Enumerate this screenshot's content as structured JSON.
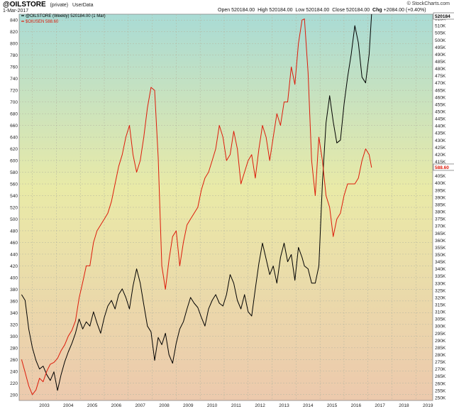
{
  "header": {
    "symbol": "@OILSTORE",
    "tag": "(private)",
    "source": "UserData",
    "date": "1-Mar-2017",
    "open_label": "Open",
    "open_value": "520184.00",
    "high_label": "High",
    "high_value": "520184.00",
    "low_label": "Low",
    "low_value": "520184.00",
    "close_label": "Close",
    "close_value": "520184.00",
    "chg_label": "Chg",
    "chg_value": "+2084.00 (+0.40%)",
    "brand": "© StockCharts.com"
  },
  "chart_data": {
    "type": "line",
    "x_ticks": [
      "2003",
      "2004",
      "2005",
      "2006",
      "2007",
      "2008",
      "2009",
      "2010",
      "2011",
      "2012",
      "2013",
      "2014",
      "2015",
      "2016",
      "2017",
      "2018",
      "2019"
    ],
    "left_axis": {
      "ticks": [
        200,
        220,
        240,
        260,
        280,
        300,
        320,
        340,
        360,
        380,
        400,
        420,
        440,
        460,
        480,
        500,
        520,
        540,
        560,
        580,
        600,
        620,
        640,
        660,
        680,
        700,
        720,
        740,
        760,
        780,
        800,
        820,
        840
      ],
      "ylim": [
        190,
        850
      ]
    },
    "right_axis": {
      "ticks": [
        "250K",
        "255K",
        "260K",
        "265K",
        "270K",
        "275K",
        "280K",
        "285K",
        "290K",
        "295K",
        "300K",
        "305K",
        "310K",
        "315K",
        "320K",
        "325K",
        "330K",
        "335K",
        "340K",
        "345K",
        "350K",
        "355K",
        "360K",
        "365K",
        "370K",
        "375K",
        "380K",
        "385K",
        "390K",
        "395K",
        "400K",
        "405K",
        "410K",
        "415K",
        "420K",
        "425K",
        "430K",
        "435K",
        "440K",
        "445K",
        "450K",
        "455K",
        "460K",
        "465K",
        "470K",
        "475K",
        "480K",
        "485K",
        "490K",
        "495K",
        "500K",
        "505K",
        "510K",
        "515K"
      ],
      "ylim": [
        248000,
        518000
      ]
    },
    "last_values": {
      "oilstore": "520184",
      "crude": "588.60"
    },
    "series": [
      {
        "name": "@OILSTORE (Weekly) 520184.00 (1 Mar)",
        "axis": "right",
        "color": "#000000",
        "x": [
          2002.55,
          2002.7,
          2002.85,
          2003.0,
          2003.15,
          2003.3,
          2003.45,
          2003.6,
          2003.75,
          2003.9,
          2004.05,
          2004.2,
          2004.35,
          2004.5,
          2004.65,
          2004.8,
          2004.95,
          2005.1,
          2005.25,
          2005.4,
          2005.55,
          2005.7,
          2005.85,
          2006.0,
          2006.15,
          2006.3,
          2006.45,
          2006.6,
          2006.75,
          2006.9,
          2007.05,
          2007.2,
          2007.35,
          2007.5,
          2007.65,
          2007.8,
          2007.95,
          2008.1,
          2008.25,
          2008.4,
          2008.55,
          2008.7,
          2008.85,
          2009.0,
          2009.15,
          2009.3,
          2009.45,
          2009.6,
          2009.75,
          2009.9,
          2010.05,
          2010.2,
          2010.35,
          2010.5,
          2010.65,
          2010.8,
          2010.95,
          2011.1,
          2011.25,
          2011.4,
          2011.55,
          2011.7,
          2011.85,
          2012.0,
          2012.15,
          2012.3,
          2012.45,
          2012.6,
          2012.75,
          2012.9,
          2013.05,
          2013.2,
          2013.35,
          2013.5,
          2013.65,
          2013.8,
          2013.95,
          2014.1,
          2014.25,
          2014.35,
          2014.5,
          2014.65,
          2014.8,
          2014.95,
          2015.1,
          2015.25,
          2015.4,
          2015.55,
          2015.7,
          2015.85,
          2016.0,
          2016.15,
          2016.3,
          2016.45,
          2016.6,
          2016.75,
          2016.9,
          2017.05,
          2017.15
        ],
        "y": [
          322000,
          318000,
          298000,
          285000,
          276000,
          270000,
          272000,
          266000,
          262000,
          268000,
          255000,
          266000,
          275000,
          282000,
          288000,
          295000,
          305000,
          298000,
          303000,
          300000,
          310000,
          302000,
          295000,
          306000,
          314000,
          318000,
          312000,
          322000,
          326000,
          320000,
          312000,
          328000,
          340000,
          330000,
          315000,
          300000,
          296000,
          276000,
          292000,
          287000,
          295000,
          280000,
          274000,
          288000,
          298000,
          303000,
          312000,
          320000,
          316000,
          313000,
          306000,
          300000,
          312000,
          318000,
          322000,
          316000,
          314000,
          322000,
          336000,
          330000,
          318000,
          312000,
          322000,
          310000,
          307000,
          326000,
          344000,
          358000,
          347000,
          336000,
          342000,
          330000,
          348000,
          358000,
          345000,
          350000,
          332000,
          355000,
          348000,
          342000,
          340000,
          330000,
          330000,
          342000,
          400000,
          442000,
          461000,
          443000,
          428000,
          430000,
          455000,
          474000,
          490000,
          510000,
          498000,
          474000,
          470000,
          490000,
          518000
        ]
      },
      {
        "name": "$OIUSEN 588.60",
        "axis": "left",
        "color": "#dd1a0a",
        "x": [
          2002.55,
          2002.7,
          2002.85,
          2003.0,
          2003.15,
          2003.3,
          2003.45,
          2003.6,
          2003.75,
          2003.9,
          2004.05,
          2004.2,
          2004.35,
          2004.5,
          2004.65,
          2004.8,
          2004.95,
          2005.1,
          2005.25,
          2005.4,
          2005.55,
          2005.7,
          2005.85,
          2006.0,
          2006.15,
          2006.3,
          2006.45,
          2006.6,
          2006.75,
          2006.9,
          2007.05,
          2007.2,
          2007.35,
          2007.5,
          2007.65,
          2007.8,
          2007.95,
          2008.1,
          2008.25,
          2008.4,
          2008.55,
          2008.7,
          2008.85,
          2009.0,
          2009.15,
          2009.3,
          2009.45,
          2009.6,
          2009.75,
          2009.9,
          2010.05,
          2010.2,
          2010.35,
          2010.5,
          2010.65,
          2010.8,
          2010.95,
          2011.1,
          2011.25,
          2011.4,
          2011.55,
          2011.7,
          2011.85,
          2012.0,
          2012.15,
          2012.3,
          2012.45,
          2012.6,
          2012.75,
          2012.9,
          2013.05,
          2013.2,
          2013.35,
          2013.5,
          2013.65,
          2013.8,
          2013.95,
          2014.1,
          2014.25,
          2014.35,
          2014.5,
          2014.65,
          2014.8,
          2014.95,
          2015.1,
          2015.25,
          2015.4,
          2015.55,
          2015.7,
          2015.85,
          2016.0,
          2016.15,
          2016.3,
          2016.45,
          2016.6,
          2016.75,
          2016.9,
          2017.05,
          2017.15
        ],
        "y": [
          260,
          238,
          215,
          200,
          208,
          228,
          222,
          240,
          252,
          255,
          262,
          275,
          285,
          300,
          310,
          326,
          365,
          392,
          420,
          420,
          460,
          480,
          490,
          500,
          510,
          530,
          560,
          590,
          610,
          640,
          660,
          610,
          580,
          600,
          640,
          690,
          725,
          720,
          605,
          420,
          380,
          430,
          470,
          480,
          420,
          460,
          490,
          500,
          510,
          520,
          550,
          570,
          580,
          600,
          620,
          660,
          640,
          600,
          610,
          650,
          620,
          560,
          580,
          600,
          610,
          570,
          620,
          660,
          640,
          600,
          640,
          680,
          660,
          700,
          700,
          760,
          730,
          800,
          840,
          842,
          750,
          600,
          540,
          640,
          600,
          540,
          520,
          470,
          500,
          510,
          540,
          560,
          560,
          560,
          570,
          600,
          620,
          610,
          588
        ]
      }
    ]
  }
}
